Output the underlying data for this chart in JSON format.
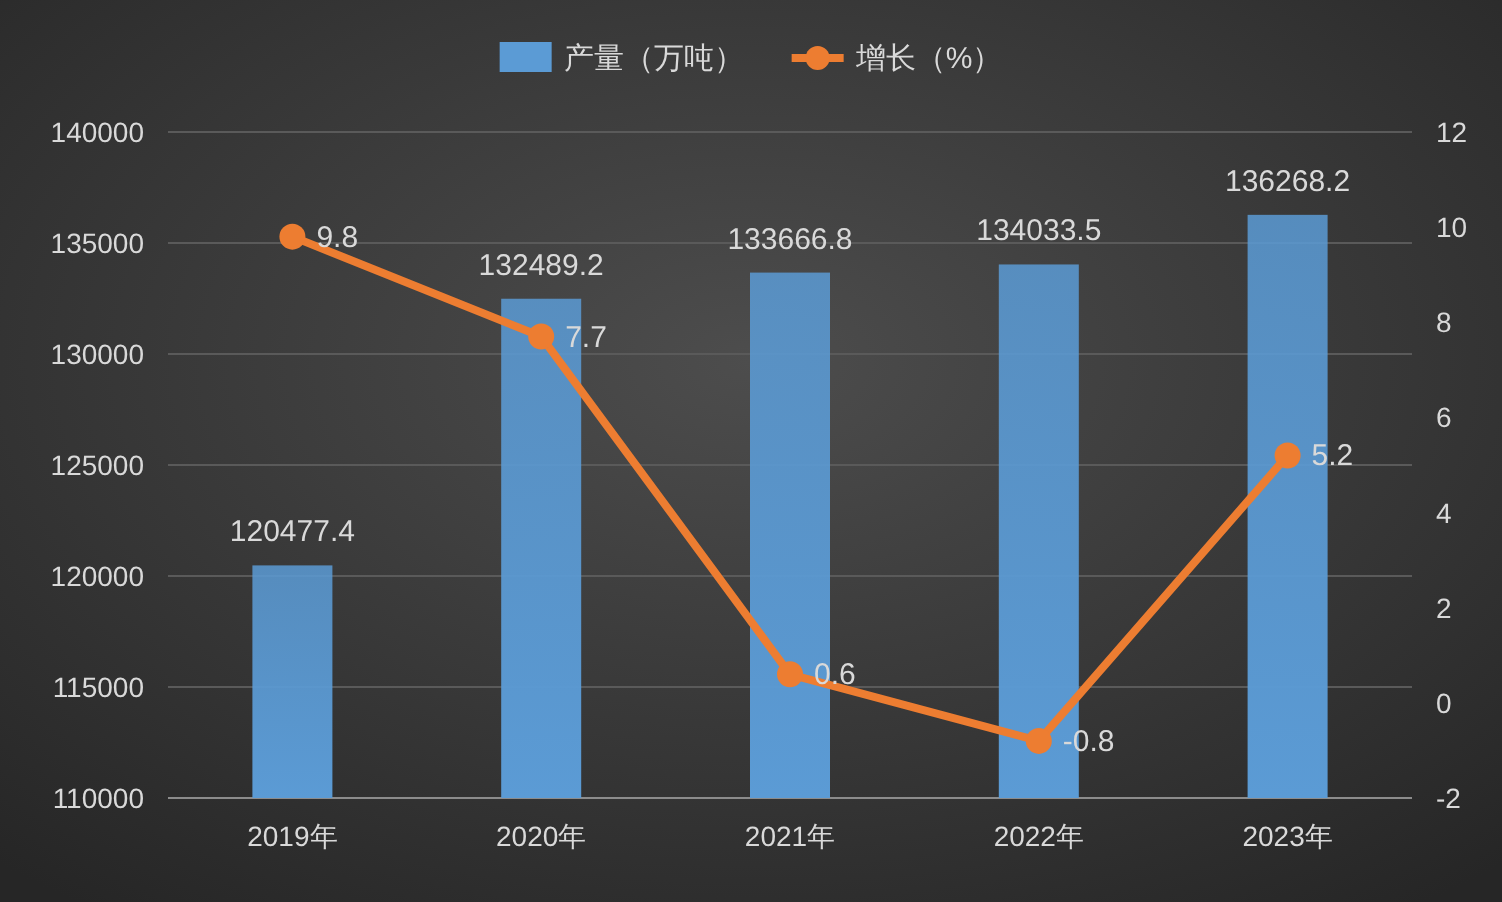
{
  "chart_data": {
    "type": "bar",
    "categories": [
      "2019年",
      "2020年",
      "2021年",
      "2022年",
      "2023年"
    ],
    "series": [
      {
        "name": "产量（万吨）",
        "color": "#5b9bd5",
        "values": [
          120477.4,
          132489.2,
          133666.8,
          134033.5,
          136268.2
        ]
      },
      {
        "name": "增长（%）",
        "type": "line",
        "axis": "y2",
        "color": "#ed7d31",
        "values": [
          9.8,
          7.7,
          0.6,
          -0.8,
          5.2
        ]
      }
    ],
    "ylim": [
      110000,
      140000
    ],
    "yticks": [
      110000,
      115000,
      120000,
      125000,
      130000,
      135000,
      140000
    ],
    "y2lim": [
      -2,
      12
    ],
    "y2ticks": [
      -2,
      0,
      2,
      4,
      6,
      8,
      10,
      12
    ],
    "grid": "y",
    "legend": "top",
    "data_labels": true,
    "marker": "circle",
    "line_style": "solid"
  }
}
